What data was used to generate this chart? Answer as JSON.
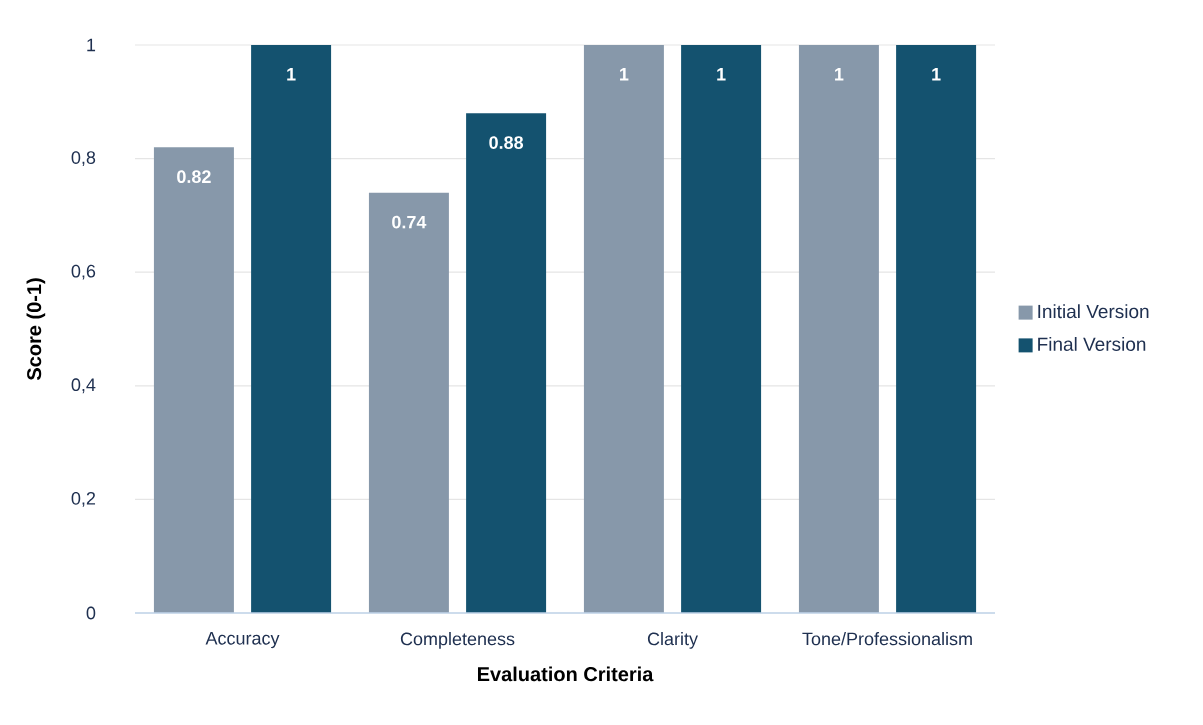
{
  "chart_data": {
    "type": "bar",
    "xlabel": "Evaluation Criteria",
    "ylabel": "Score (0-1)",
    "categories": [
      "Accuracy",
      "Completeness",
      "Clarity",
      "Tone/Professionalism"
    ],
    "series": [
      {
        "name": "Initial Version",
        "color": "#8798aa",
        "values": [
          0.82,
          0.74,
          1,
          1
        ]
      },
      {
        "name": "Final Version",
        "color": "#14526f",
        "values": [
          1,
          0.88,
          1,
          1
        ]
      }
    ],
    "ylim": [
      0,
      1
    ],
    "yticks": [
      0,
      {
        "value": 0.2,
        "label": "0,2"
      },
      {
        "value": 0.4,
        "label": "0,4"
      },
      {
        "value": 0.6,
        "label": "0,6"
      },
      {
        "value": 0.8,
        "label": "0,8"
      },
      1
    ],
    "grid": "y",
    "legend": "right",
    "data_labels": true
  }
}
